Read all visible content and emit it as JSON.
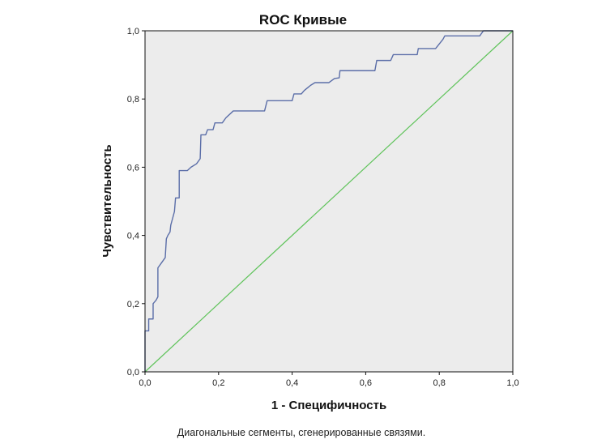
{
  "chart_data": {
    "type": "line",
    "title": "ROC Кривые",
    "xlabel": "1 - Специфичность",
    "ylabel": "Чувствительность",
    "xlim": [
      0,
      1
    ],
    "ylim": [
      0,
      1
    ],
    "x_ticks": [
      "0,0",
      "0,2",
      "0,4",
      "0,6",
      "0,8",
      "1,0"
    ],
    "y_ticks": [
      "0,0",
      "0,2",
      "0,4",
      "0,6",
      "0,8",
      "1,0"
    ],
    "x_tick_values": [
      0,
      0.2,
      0.4,
      0.6,
      0.8,
      1.0
    ],
    "y_tick_values": [
      0,
      0.2,
      0.4,
      0.6,
      0.8,
      1.0
    ],
    "grid": false,
    "footnote": "Диагональные сегменты, сгенерированные связями.",
    "colors": {
      "plot_background": "#ececec",
      "roc_curve": "#5b6ea8",
      "reference_line": "#5fc35a",
      "axis": "#111111"
    },
    "series": [
      {
        "values": [
          [
            0.0,
            0.0
          ],
          [
            0.0,
            0.12
          ],
          [
            0.01,
            0.12
          ],
          [
            0.01,
            0.155
          ],
          [
            0.022,
            0.155
          ],
          [
            0.022,
            0.2
          ],
          [
            0.03,
            0.21
          ],
          [
            0.035,
            0.22
          ],
          [
            0.035,
            0.305
          ],
          [
            0.045,
            0.32
          ],
          [
            0.055,
            0.335
          ],
          [
            0.058,
            0.39
          ],
          [
            0.062,
            0.4
          ],
          [
            0.068,
            0.41
          ],
          [
            0.07,
            0.43
          ],
          [
            0.08,
            0.47
          ],
          [
            0.083,
            0.51
          ],
          [
            0.093,
            0.51
          ],
          [
            0.093,
            0.59
          ],
          [
            0.115,
            0.59
          ],
          [
            0.125,
            0.6
          ],
          [
            0.14,
            0.61
          ],
          [
            0.15,
            0.625
          ],
          [
            0.152,
            0.695
          ],
          [
            0.165,
            0.695
          ],
          [
            0.17,
            0.71
          ],
          [
            0.185,
            0.71
          ],
          [
            0.19,
            0.73
          ],
          [
            0.21,
            0.73
          ],
          [
            0.22,
            0.745
          ],
          [
            0.24,
            0.765
          ],
          [
            0.325,
            0.765
          ],
          [
            0.332,
            0.795
          ],
          [
            0.4,
            0.795
          ],
          [
            0.405,
            0.815
          ],
          [
            0.425,
            0.815
          ],
          [
            0.433,
            0.825
          ],
          [
            0.45,
            0.84
          ],
          [
            0.462,
            0.848
          ],
          [
            0.5,
            0.848
          ],
          [
            0.515,
            0.86
          ],
          [
            0.528,
            0.862
          ],
          [
            0.53,
            0.883
          ],
          [
            0.625,
            0.883
          ],
          [
            0.63,
            0.913
          ],
          [
            0.668,
            0.913
          ],
          [
            0.675,
            0.93
          ],
          [
            0.74,
            0.93
          ],
          [
            0.743,
            0.948
          ],
          [
            0.79,
            0.948
          ],
          [
            0.81,
            0.975
          ],
          [
            0.815,
            0.985
          ],
          [
            0.91,
            0.985
          ],
          [
            0.92,
            1.0
          ],
          [
            1.0,
            1.0
          ]
        ]
      },
      {
        "values": [
          [
            0,
            0
          ],
          [
            1,
            1
          ]
        ]
      }
    ]
  }
}
